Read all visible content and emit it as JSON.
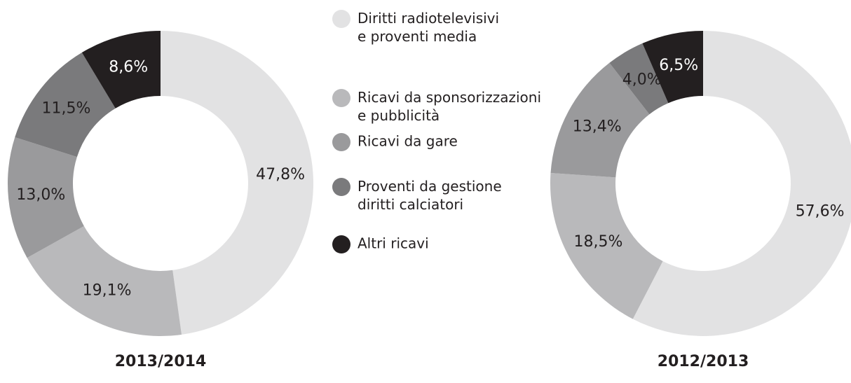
{
  "chart_data": [
    {
      "type": "pie",
      "title": "2013/2014",
      "categories": [
        "Diritti radiotelevisivi\ne proventi media",
        "Ricavi da sponsorizzazioni\ne pubblicità",
        "Ricavi da gare",
        "Proventi da gestione\ndiritti calciatori",
        "Altri ricavi"
      ],
      "values": [
        47.8,
        19.1,
        13.0,
        11.5,
        8.6
      ],
      "value_labels": [
        "47,8%",
        "19,1%",
        "13,0%",
        "11,5%",
        "8,6%"
      ],
      "colors": [
        "#e2e2e3",
        "#b9b9bb",
        "#9a9a9c",
        "#7a7a7c",
        "#231f20"
      ]
    },
    {
      "type": "pie",
      "title": "2012/2013",
      "values": [
        57.6,
        18.5,
        13.4,
        4.0,
        6.5
      ],
      "value_labels": [
        "57,6%",
        "18,5%",
        "13,4%",
        "4,0%",
        "6,5%"
      ],
      "colors": [
        "#e2e2e3",
        "#b9b9bb",
        "#9a9a9c",
        "#7a7a7c",
        "#231f20"
      ]
    }
  ]
}
